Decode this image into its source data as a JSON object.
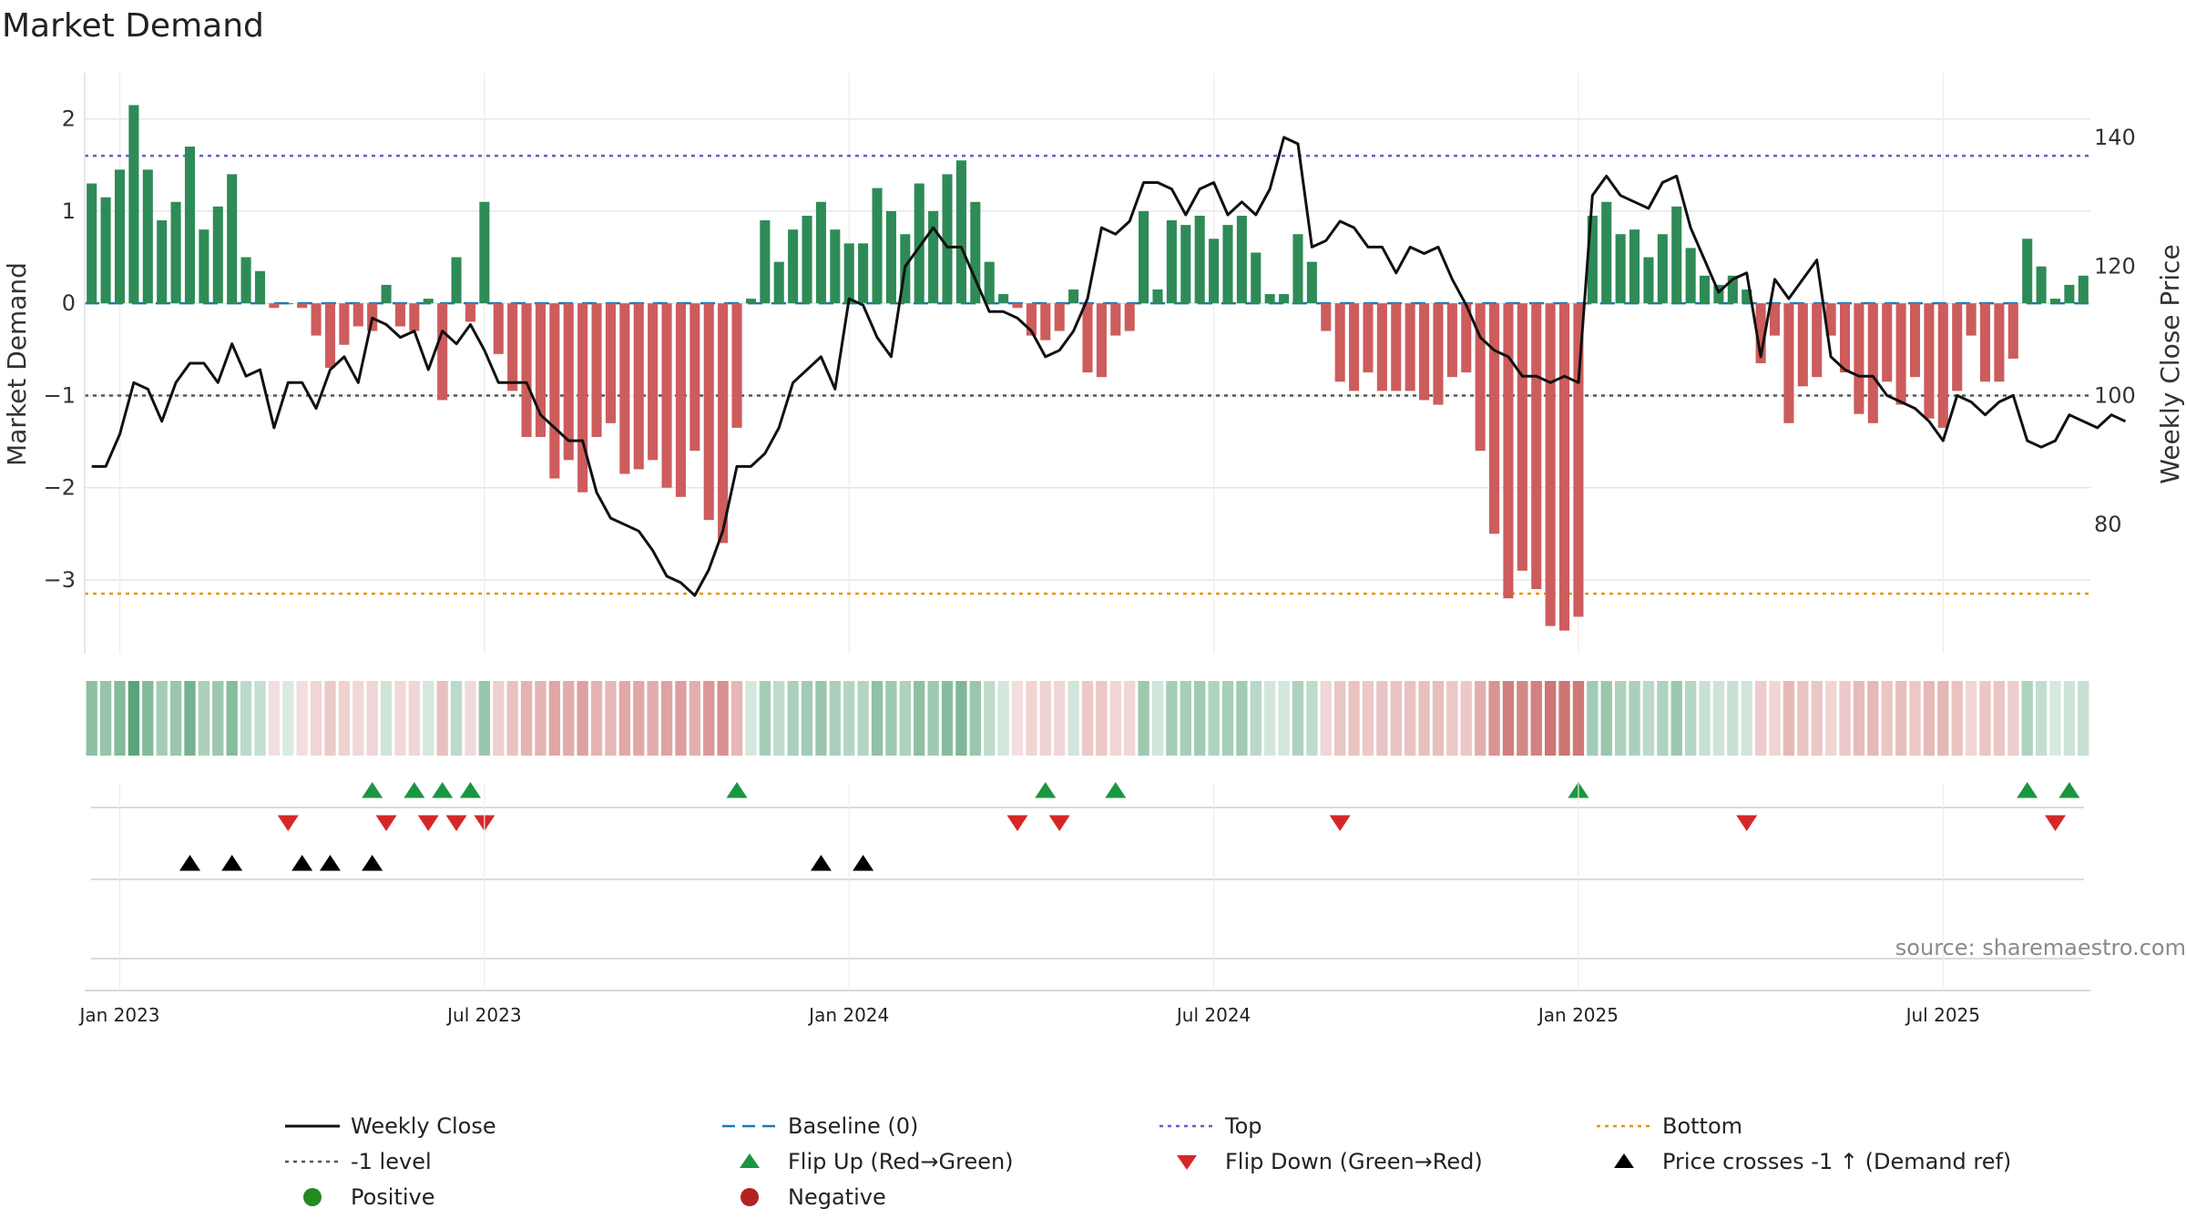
{
  "chart_data": {
    "type": "bar",
    "title": "Market Demand",
    "ylabel_left": "Market Demand",
    "ylabel_right": "Weekly Close Price",
    "source": "source: sharemaestro.com",
    "y_left": {
      "lim": [
        -3.8,
        2.5
      ],
      "ticks": [
        2,
        1,
        0,
        -1,
        -2,
        -3
      ],
      "tick_labels": [
        "2",
        "1",
        "0",
        "−1",
        "−2",
        "−3"
      ]
    },
    "y_right": {
      "lim": [
        60,
        150
      ],
      "ticks": [
        140,
        120,
        100,
        80
      ],
      "tick_labels": [
        "140",
        "120",
        "100",
        "80"
      ]
    },
    "x_ticks": [
      {
        "label": "Jan 2023",
        "week": 2
      },
      {
        "label": "Jul 2023",
        "week": 28
      },
      {
        "label": "Jan 2024",
        "week": 54
      },
      {
        "label": "Jul 2024",
        "week": 80
      },
      {
        "label": "Jan 2025",
        "week": 106
      },
      {
        "label": "Jul 2025",
        "week": 132
      }
    ],
    "reference_lines": {
      "top": 1.6,
      "bottom": -3.15,
      "minus_one": -1,
      "baseline": 0
    },
    "demand": [
      1.3,
      1.15,
      1.45,
      2.15,
      1.45,
      0.9,
      1.1,
      1.7,
      0.8,
      1.05,
      1.4,
      0.5,
      0.35,
      -0.05,
      0,
      -0.05,
      -0.35,
      -0.7,
      -0.45,
      -0.25,
      -0.3,
      0.2,
      -0.25,
      -0.3,
      0.05,
      -1.05,
      0.5,
      -0.2,
      1.1,
      -0.55,
      -0.95,
      -1.45,
      -1.45,
      -1.9,
      -1.7,
      -2.05,
      -1.45,
      -1.3,
      -1.85,
      -1.8,
      -1.7,
      -2.0,
      -2.1,
      -1.6,
      -2.35,
      -2.6,
      -1.35,
      0.05,
      0.9,
      0.45,
      0.8,
      0.95,
      1.1,
      0.8,
      0.65,
      0.65,
      1.25,
      1.0,
      0.75,
      1.3,
      1.0,
      1.4,
      1.55,
      1.1,
      0.45,
      0.1,
      -0.05,
      -0.35,
      -0.4,
      -0.3,
      0.15,
      -0.75,
      -0.8,
      -0.35,
      -0.3,
      1.0,
      0.15,
      0.9,
      0.85,
      0.95,
      0.7,
      0.85,
      0.95,
      0.55,
      0.1,
      0.1,
      0.75,
      0.45,
      -0.3,
      -0.85,
      -0.95,
      -0.75,
      -0.95,
      -0.95,
      -0.95,
      -1.05,
      -1.1,
      -0.8,
      -0.75,
      -1.6,
      -2.5,
      -3.2,
      -2.9,
      -3.1,
      -3.5,
      -3.55,
      -3.4,
      0.95,
      1.1,
      0.75,
      0.8,
      0.5,
      0.75,
      1.05,
      0.6,
      0.3,
      0.2,
      0.3,
      0.15,
      -0.65,
      -0.35,
      -1.3,
      -0.9,
      -0.8,
      -0.35,
      -0.75,
      -1.2,
      -1.3,
      -0.85,
      -1.1,
      -0.8,
      -1.25,
      -1.35,
      -0.95,
      -0.35,
      -0.85,
      -0.85,
      -0.6,
      0.7,
      0.4,
      0.05,
      0.2,
      0.3
    ],
    "close": [
      89,
      89,
      94,
      102,
      101,
      96,
      102,
      105,
      105,
      102,
      108,
      103,
      104,
      95,
      102,
      102,
      98,
      104,
      106,
      102,
      112,
      111,
      109,
      110,
      104,
      110,
      108,
      111,
      107,
      102,
      102,
      102,
      97,
      95,
      93,
      93,
      85,
      81,
      80,
      79,
      76,
      72,
      71,
      69,
      73,
      79,
      89,
      89,
      91,
      95,
      102,
      104,
      106,
      101,
      115,
      114,
      109,
      106,
      120,
      123,
      126,
      123,
      123,
      118,
      113,
      113,
      112,
      110,
      106,
      107,
      110,
      115,
      126,
      125,
      127,
      133,
      133,
      132,
      128,
      132,
      133,
      128,
      130,
      128,
      132,
      140,
      139,
      123,
      124,
      127,
      126,
      123,
      123,
      119,
      123,
      122,
      123,
      118,
      114,
      109,
      107,
      106,
      103,
      103,
      102,
      103,
      102,
      131,
      134,
      131,
      130,
      129,
      133,
      134,
      126,
      121,
      116,
      118,
      119,
      106,
      118,
      115,
      118,
      121,
      106,
      104,
      103,
      103,
      100,
      99,
      98,
      96,
      93,
      100,
      99,
      97,
      99,
      100,
      93,
      92,
      93,
      97,
      96,
      95,
      97,
      96
    ],
    "heat_strip": {
      "description": "per-week colour intensity strip",
      "positive_color": "#2e8b57",
      "negative_color": "#c0504d"
    },
    "flip_up_weeks": [
      20,
      23,
      25,
      27,
      46,
      68,
      73,
      106,
      138,
      141
    ],
    "flip_down_weeks": [
      14,
      21,
      24,
      26,
      28,
      66,
      69,
      89,
      118,
      140
    ],
    "price_cross_weeks": [
      7,
      10,
      15,
      17,
      20,
      52,
      55
    ],
    "legend": {
      "position": "bottom",
      "entries": [
        {
          "label": "Weekly Close",
          "style": "line-solid",
          "color": "#111111"
        },
        {
          "label": "Baseline (0)",
          "style": "line-dash",
          "color": "#1f77b4"
        },
        {
          "label": "Top",
          "style": "line-dot",
          "color": "#6a5acd"
        },
        {
          "label": "Bottom",
          "style": "line-dot",
          "color": "#e69500"
        },
        {
          "label": "-1 level",
          "style": "line-dot",
          "color": "#555555"
        },
        {
          "label": "Flip Up (Red→Green)",
          "style": "tri-up",
          "color": "#1a9641"
        },
        {
          "label": "Flip Down (Green→Red)",
          "style": "tri-down",
          "color": "#d62728"
        },
        {
          "label": "Price crosses -1 ↑ (Demand ref)",
          "style": "tri-up",
          "color": "#000000"
        },
        {
          "label": "Positive",
          "style": "dot",
          "color": "#228b22"
        },
        {
          "label": "Negative",
          "style": "dot",
          "color": "#b22222"
        }
      ]
    },
    "colors": {
      "positive_bar": "#2e8b57",
      "negative_bar": "#cd5c5c",
      "close_line": "#111111",
      "grid": "#e6e6e6"
    }
  }
}
